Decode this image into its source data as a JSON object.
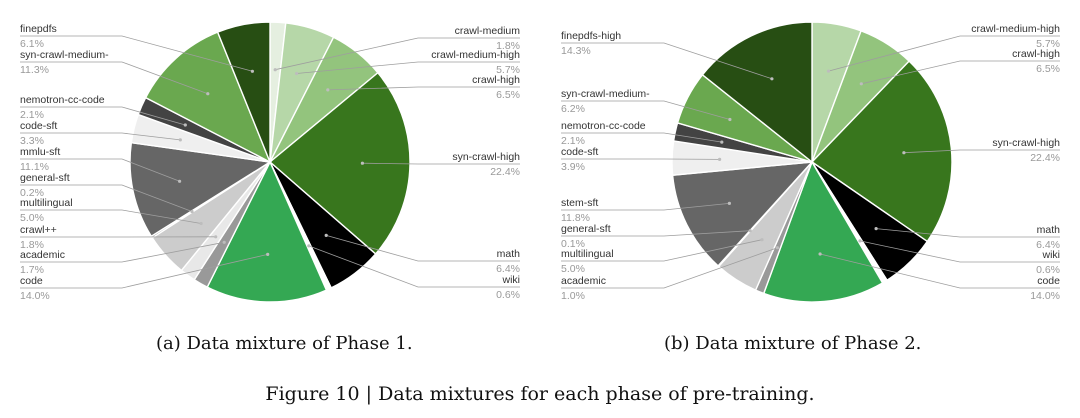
{
  "chart_data": [
    {
      "type": "pie",
      "caption": "(a) Data mixture of Phase 1.",
      "slices": [
        {
          "name": "crawl-medium",
          "pct": "1.8%",
          "value": 1.8,
          "color": "#e5efe0"
        },
        {
          "name": "crawl-medium-high",
          "pct": "5.7%",
          "value": 5.7,
          "color": "#b6d7a8"
        },
        {
          "name": "crawl-high",
          "pct": "6.5%",
          "value": 6.5,
          "color": "#93c47d"
        },
        {
          "name": "syn-crawl-high",
          "pct": "22.4%",
          "value": 22.4,
          "color": "#38761d"
        },
        {
          "name": "math",
          "pct": "6.4%",
          "value": 6.4,
          "color": "#000000"
        },
        {
          "name": "wiki",
          "pct": "0.6%",
          "value": 0.6,
          "color": "#ffffff"
        },
        {
          "name": "code",
          "pct": "14.0%",
          "value": 14.0,
          "color": "#34a853"
        },
        {
          "name": "academic",
          "pct": "1.7%",
          "value": 1.7,
          "color": "#999999"
        },
        {
          "name": "crawl++",
          "pct": "1.8%",
          "value": 1.8,
          "color": "#e8e8e8"
        },
        {
          "name": "multilingual",
          "pct": "5.0%",
          "value": 5.0,
          "color": "#cccccc"
        },
        {
          "name": "general-sft",
          "pct": "0.2%",
          "value": 0.2,
          "color": "#444444"
        },
        {
          "name": "mmlu-sft",
          "pct": "11.1%",
          "value": 11.1,
          "color": "#666666"
        },
        {
          "name": "code-sft",
          "pct": "3.3%",
          "value": 3.3,
          "color": "#efefef"
        },
        {
          "name": "nemotron-cc-code",
          "pct": "2.1%",
          "value": 2.1,
          "color": "#434343"
        },
        {
          "name": "syn-crawl-medium-",
          "pct": "11.3%",
          "value": 11.3,
          "color": "#6aa84f"
        },
        {
          "name": "finepdfs",
          "pct": "6.1%",
          "value": 6.1,
          "color": "#274e13"
        }
      ]
    },
    {
      "type": "pie",
      "caption": "(b) Data mixture of Phase 2.",
      "slices": [
        {
          "name": "crawl-medium-high",
          "pct": "5.7%",
          "value": 5.7,
          "color": "#b6d7a8"
        },
        {
          "name": "crawl-high",
          "pct": "6.5%",
          "value": 6.5,
          "color": "#93c47d"
        },
        {
          "name": "syn-crawl-high",
          "pct": "22.4%",
          "value": 22.4,
          "color": "#38761d"
        },
        {
          "name": "math",
          "pct": "6.4%",
          "value": 6.4,
          "color": "#000000"
        },
        {
          "name": "wiki",
          "pct": "0.6%",
          "value": 0.6,
          "color": "#ffffff"
        },
        {
          "name": "code",
          "pct": "14.0%",
          "value": 14.0,
          "color": "#34a853"
        },
        {
          "name": "academic",
          "pct": "1.0%",
          "value": 1.0,
          "color": "#999999"
        },
        {
          "name": "multilingual",
          "pct": "5.0%",
          "value": 5.0,
          "color": "#cccccc"
        },
        {
          "name": "general-sft",
          "pct": "0.1%",
          "value": 0.1,
          "color": "#444444"
        },
        {
          "name": "stem-sft",
          "pct": "11.8%",
          "value": 11.8,
          "color": "#666666"
        },
        {
          "name": "code-sft",
          "pct": "3.9%",
          "value": 3.9,
          "color": "#efefef"
        },
        {
          "name": "nemotron-cc-code",
          "pct": "2.1%",
          "value": 2.1,
          "color": "#434343"
        },
        {
          "name": "syn-crawl-medium-",
          "pct": "6.2%",
          "value": 6.2,
          "color": "#6aa84f"
        },
        {
          "name": "finepdfs-high",
          "pct": "14.3%",
          "value": 14.3,
          "color": "#274e13"
        }
      ]
    }
  ],
  "figure_caption": "Figure 10 | Data mixtures for each phase of pre-training."
}
